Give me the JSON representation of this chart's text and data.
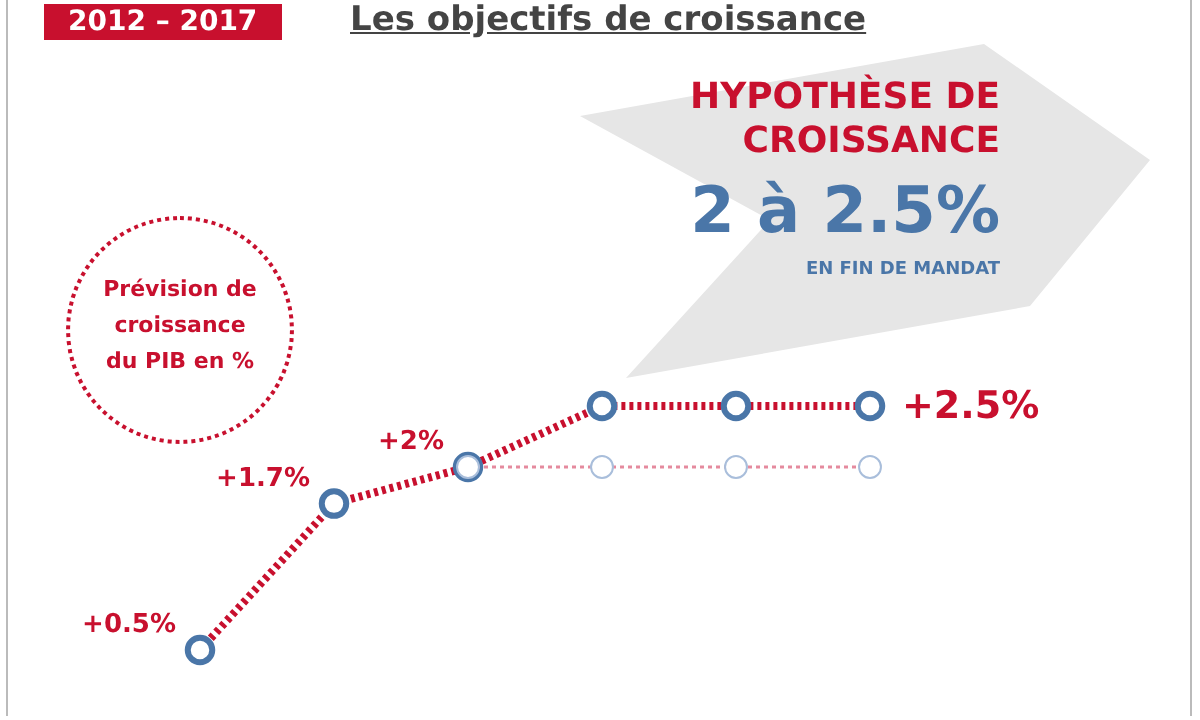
{
  "chart_data": {
    "type": "line",
    "title": "Les objectifs de croissance",
    "subtitle": "2012 – 2017",
    "categories": [
      null,
      null,
      null,
      null,
      null,
      null
    ],
    "series": [
      {
        "color": "#c8102e",
        "values": [
          0.5,
          1.7,
          2,
          2.5,
          2.5,
          2.5
        ],
        "value_labels": [
          "+0.5%",
          "+1.7%",
          "+2%",
          null,
          null,
          "+2.5%"
        ]
      },
      {
        "color": "#e58a9e",
        "values": [
          null,
          null,
          2,
          2,
          2,
          2
        ]
      }
    ],
    "annotations": [
      "HYPOTHÈSE DE CROISSANCE",
      "2 à 2.5%",
      "EN FIN DE MANDAT",
      "Prévision de croissance du PIB en %"
    ],
    "marker": "circle",
    "line_style": "dotted"
  }
}
